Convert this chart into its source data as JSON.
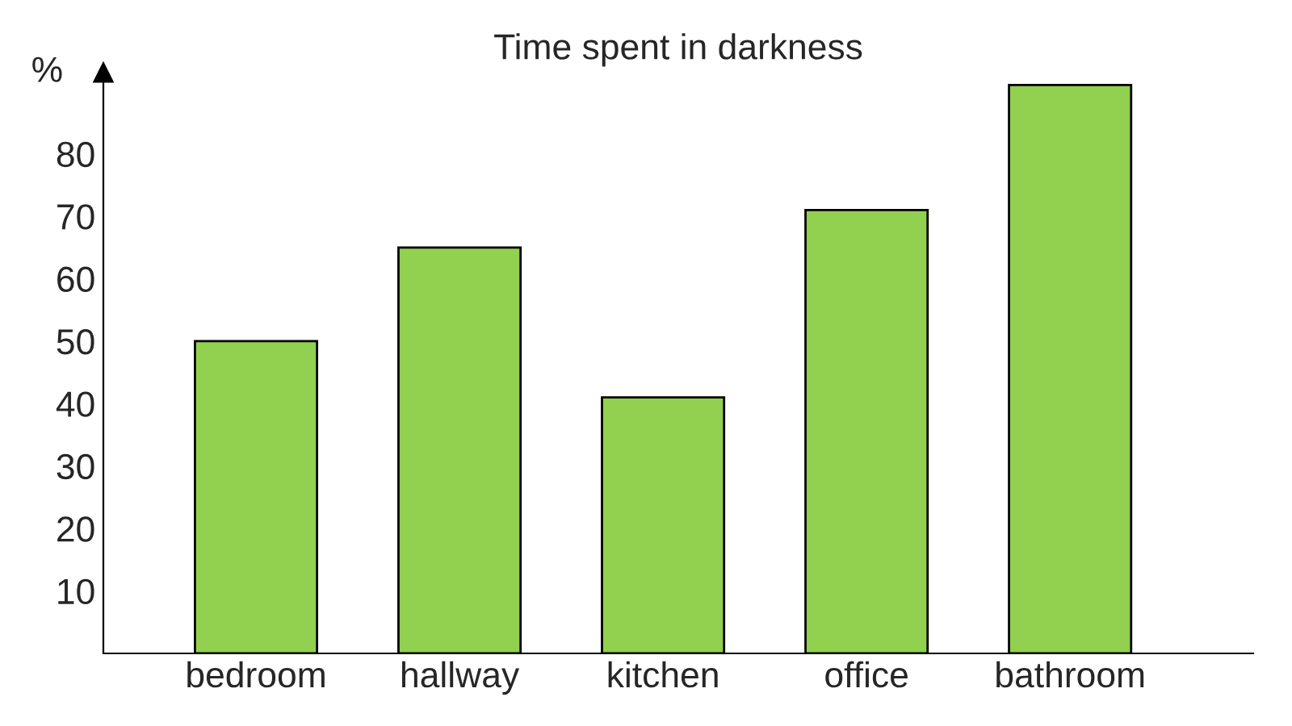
{
  "chart_data": {
    "type": "bar",
    "title": "Time spent in darkness",
    "ylabel": "%",
    "categories": [
      "bedroom",
      "hallway",
      "kitchen",
      "office",
      "bathroom"
    ],
    "values": [
      50,
      65,
      41,
      71,
      91
    ],
    "color": "#92d050",
    "ylim": [
      0,
      93
    ],
    "yticks": [
      10,
      20,
      30,
      40,
      50,
      60,
      70,
      80
    ],
    "grid": false,
    "legend": false
  }
}
